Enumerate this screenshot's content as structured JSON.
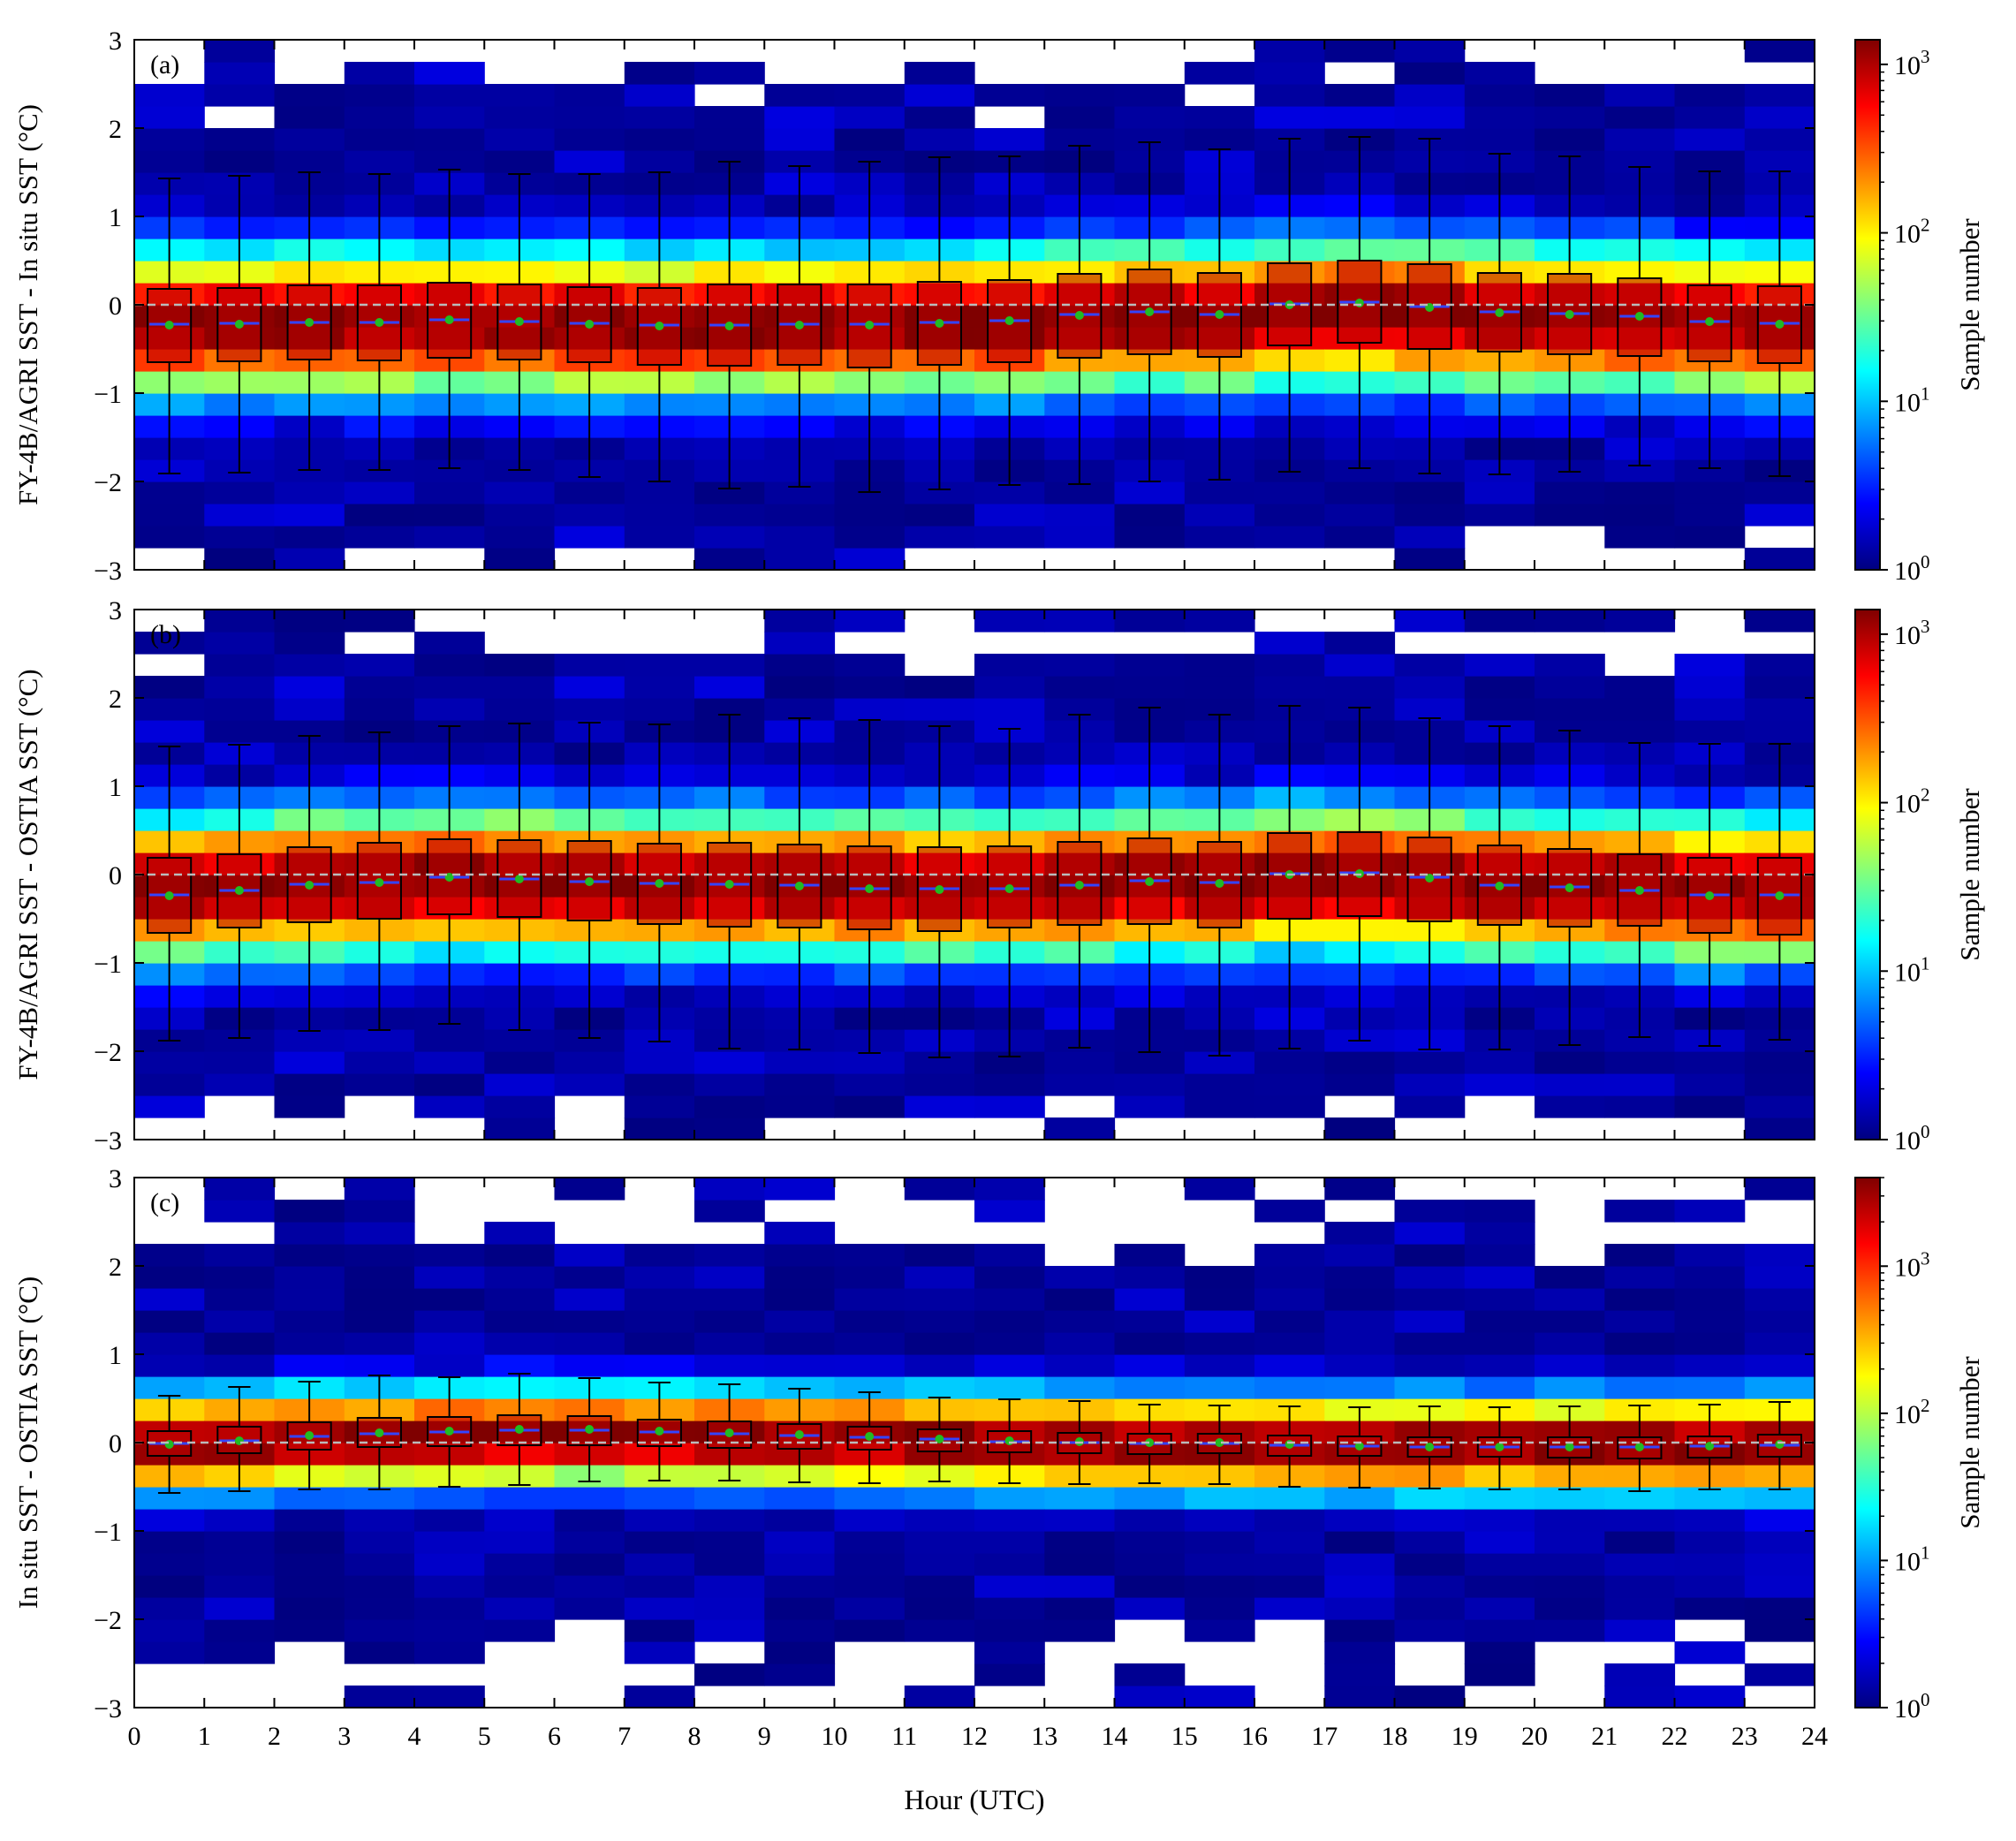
{
  "colors": {
    "box_fill": "#b80000",
    "median_line": "#3344ff",
    "mean_marker": "#22bb22",
    "zero_line": "#bbbbbb",
    "colormap": [
      "#00007f",
      "#0000ff",
      "#007fff",
      "#00ffff",
      "#7fff7f",
      "#ffff00",
      "#ff7f00",
      "#ff0000",
      "#7f0000"
    ]
  },
  "chart_data": [
    {
      "type": "heatmap",
      "panel_label": "(a)",
      "ylabel": "FY-4B/AGRI SST - In situ SST (°C)",
      "xlim": [
        0,
        24
      ],
      "ylim": [
        -3,
        3
      ],
      "x_ticks": [
        "0",
        "1",
        "2",
        "3",
        "4",
        "5",
        "6",
        "7",
        "8",
        "9",
        "10",
        "11",
        "12",
        "13",
        "14",
        "15",
        "16",
        "17",
        "18",
        "19",
        "20",
        "21",
        "22",
        "23",
        "24"
      ],
      "y_ticks": [
        "−3",
        "−2",
        "−1",
        "0",
        "1",
        "2",
        "3"
      ],
      "colorbar": {
        "label": "Sample number",
        "scale": "log",
        "range": [
          1,
          1400
        ],
        "tick_bases": [
          "10",
          "10",
          "10",
          "10"
        ],
        "tick_exps": [
          "0",
          "1",
          "2",
          "3"
        ]
      },
      "density_profile": {
        "center": -0.2,
        "spread": 0.95,
        "peak": 1400,
        "tail_cutoff": 2.6
      },
      "hours": [
        0.5,
        1.5,
        2.5,
        3.5,
        4.5,
        5.5,
        6.5,
        7.5,
        8.5,
        9.5,
        10.5,
        11.5,
        12.5,
        13.5,
        14.5,
        15.5,
        16.5,
        17.5,
        18.5,
        19.5,
        20.5,
        21.5,
        22.5,
        23.5
      ],
      "box": {
        "q1": [
          -0.65,
          -0.64,
          -0.62,
          -0.63,
          -0.6,
          -0.62,
          -0.65,
          -0.68,
          -0.69,
          -0.68,
          -0.71,
          -0.68,
          -0.65,
          -0.6,
          -0.56,
          -0.59,
          -0.46,
          -0.43,
          -0.5,
          -0.53,
          -0.56,
          -0.58,
          -0.64,
          -0.66
        ],
        "median": [
          -0.22,
          -0.21,
          -0.2,
          -0.2,
          -0.17,
          -0.19,
          -0.21,
          -0.23,
          -0.23,
          -0.22,
          -0.22,
          -0.2,
          -0.18,
          -0.11,
          -0.08,
          -0.11,
          0.01,
          0.03,
          -0.02,
          -0.08,
          -0.1,
          -0.13,
          -0.19,
          -0.21
        ],
        "q3": [
          0.18,
          0.19,
          0.22,
          0.22,
          0.25,
          0.23,
          0.2,
          0.19,
          0.23,
          0.23,
          0.23,
          0.26,
          0.28,
          0.35,
          0.4,
          0.36,
          0.47,
          0.5,
          0.46,
          0.36,
          0.35,
          0.3,
          0.22,
          0.21
        ],
        "whisker_low": [
          -1.91,
          -1.9,
          -1.87,
          -1.87,
          -1.85,
          -1.87,
          -1.95,
          -2.0,
          -2.08,
          -2.06,
          -2.12,
          -2.09,
          -2.04,
          -2.03,
          -2.0,
          -1.98,
          -1.89,
          -1.85,
          -1.91,
          -1.92,
          -1.89,
          -1.82,
          -1.85,
          -1.94
        ],
        "whisker_high": [
          1.43,
          1.46,
          1.5,
          1.48,
          1.53,
          1.48,
          1.48,
          1.5,
          1.62,
          1.57,
          1.62,
          1.67,
          1.68,
          1.8,
          1.84,
          1.76,
          1.88,
          1.9,
          1.88,
          1.71,
          1.68,
          1.56,
          1.51,
          1.51
        ],
        "mean": [
          -0.23,
          -0.22,
          -0.2,
          -0.2,
          -0.17,
          -0.19,
          -0.22,
          -0.24,
          -0.24,
          -0.23,
          -0.23,
          -0.21,
          -0.18,
          -0.12,
          -0.08,
          -0.11,
          0.0,
          0.02,
          -0.03,
          -0.09,
          -0.11,
          -0.13,
          -0.19,
          -0.22
        ]
      }
    },
    {
      "type": "heatmap",
      "panel_label": "(b)",
      "ylabel": "FY-4B/AGRI SST - OSTIA SST (°C)",
      "xlim": [
        0,
        24
      ],
      "ylim": [
        -3,
        3
      ],
      "x_ticks": [
        "0",
        "1",
        "2",
        "3",
        "4",
        "5",
        "6",
        "7",
        "8",
        "9",
        "10",
        "11",
        "12",
        "13",
        "14",
        "15",
        "16",
        "17",
        "18",
        "19",
        "20",
        "21",
        "22",
        "23",
        "24"
      ],
      "y_ticks": [
        "−3",
        "−2",
        "−1",
        "0",
        "1",
        "2",
        "3"
      ],
      "colorbar": {
        "label": "Sample number",
        "scale": "log",
        "range": [
          1,
          1400
        ],
        "tick_bases": [
          "10",
          "10",
          "10",
          "10"
        ],
        "tick_exps": [
          "0",
          "1",
          "2",
          "3"
        ]
      },
      "density_profile": {
        "center": -0.1,
        "spread": 0.95,
        "peak": 1400,
        "tail_cutoff": 2.6
      },
      "hours": [
        0.5,
        1.5,
        2.5,
        3.5,
        4.5,
        5.5,
        6.5,
        7.5,
        8.5,
        9.5,
        10.5,
        11.5,
        12.5,
        13.5,
        14.5,
        15.5,
        16.5,
        17.5,
        18.5,
        19.5,
        20.5,
        21.5,
        22.5,
        23.5
      ],
      "box": {
        "q1": [
          -0.66,
          -0.6,
          -0.54,
          -0.5,
          -0.45,
          -0.48,
          -0.52,
          -0.56,
          -0.59,
          -0.6,
          -0.62,
          -0.64,
          -0.6,
          -0.57,
          -0.56,
          -0.6,
          -0.5,
          -0.47,
          -0.53,
          -0.57,
          -0.59,
          -0.58,
          -0.66,
          -0.68
        ],
        "median": [
          -0.23,
          -0.18,
          -0.11,
          -0.09,
          -0.03,
          -0.05,
          -0.08,
          -0.1,
          -0.11,
          -0.12,
          -0.16,
          -0.16,
          -0.16,
          -0.12,
          -0.07,
          -0.09,
          0.01,
          0.02,
          -0.03,
          -0.12,
          -0.14,
          -0.18,
          -0.23,
          -0.23
        ],
        "q3": [
          0.19,
          0.23,
          0.31,
          0.36,
          0.4,
          0.39,
          0.38,
          0.35,
          0.36,
          0.34,
          0.32,
          0.31,
          0.32,
          0.37,
          0.41,
          0.37,
          0.47,
          0.48,
          0.42,
          0.33,
          0.29,
          0.23,
          0.19,
          0.19
        ],
        "whisker_low": [
          -1.88,
          -1.85,
          -1.77,
          -1.76,
          -1.69,
          -1.76,
          -1.85,
          -1.89,
          -1.97,
          -1.98,
          -2.02,
          -2.07,
          -2.06,
          -1.96,
          -2.01,
          -2.05,
          -1.97,
          -1.88,
          -1.98,
          -1.98,
          -1.93,
          -1.84,
          -1.94,
          -1.87
        ],
        "whisker_high": [
          1.45,
          1.47,
          1.57,
          1.61,
          1.68,
          1.71,
          1.72,
          1.7,
          1.81,
          1.77,
          1.75,
          1.68,
          1.65,
          1.81,
          1.89,
          1.81,
          1.91,
          1.89,
          1.77,
          1.68,
          1.63,
          1.49,
          1.48,
          1.48
        ],
        "mean": [
          -0.24,
          -0.18,
          -0.12,
          -0.09,
          -0.03,
          -0.05,
          -0.08,
          -0.1,
          -0.11,
          -0.13,
          -0.16,
          -0.17,
          -0.16,
          -0.12,
          -0.08,
          -0.1,
          0.0,
          0.01,
          -0.04,
          -0.13,
          -0.15,
          -0.18,
          -0.24,
          -0.24
        ]
      }
    },
    {
      "type": "heatmap",
      "panel_label": "(c)",
      "ylabel": "In situ SST - OSTIA SST (°C)",
      "xlim": [
        0,
        24
      ],
      "ylim": [
        -3,
        3
      ],
      "x_ticks": [
        "0",
        "1",
        "2",
        "3",
        "4",
        "5",
        "6",
        "7",
        "8",
        "9",
        "10",
        "11",
        "12",
        "13",
        "14",
        "15",
        "16",
        "17",
        "18",
        "19",
        "20",
        "21",
        "22",
        "23",
        "24"
      ],
      "y_ticks": [
        "−3",
        "−2",
        "−1",
        "0",
        "1",
        "2",
        "3"
      ],
      "xlabel": "Hour (UTC)",
      "colorbar": {
        "label": "Sample number",
        "scale": "log",
        "range": [
          1,
          4000
        ],
        "tick_bases": [
          "10",
          "10",
          "10",
          "10"
        ],
        "tick_exps": [
          "0",
          "1",
          "2",
          "3"
        ]
      },
      "density_profile": {
        "center": 0.0,
        "spread": 0.65,
        "peak": 4000,
        "tail_cutoff": 2.3
      },
      "hours": [
        0.5,
        1.5,
        2.5,
        3.5,
        4.5,
        5.5,
        6.5,
        7.5,
        8.5,
        9.5,
        10.5,
        11.5,
        12.5,
        13.5,
        14.5,
        15.5,
        16.5,
        17.5,
        18.5,
        19.5,
        20.5,
        21.5,
        22.5,
        23.5
      ],
      "box": {
        "q1": [
          -0.15,
          -0.12,
          -0.08,
          -0.05,
          -0.04,
          -0.03,
          -0.03,
          -0.04,
          -0.06,
          -0.07,
          -0.08,
          -0.1,
          -0.11,
          -0.12,
          -0.13,
          -0.12,
          -0.15,
          -0.15,
          -0.16,
          -0.16,
          -0.17,
          -0.18,
          -0.17,
          -0.16
        ],
        "median": [
          -0.01,
          0.02,
          0.07,
          0.1,
          0.12,
          0.14,
          0.14,
          0.12,
          0.1,
          0.08,
          0.06,
          0.04,
          0.01,
          0.0,
          -0.01,
          -0.01,
          -0.03,
          -0.04,
          -0.05,
          -0.05,
          -0.05,
          -0.05,
          -0.04,
          -0.03
        ],
        "q3": [
          0.13,
          0.18,
          0.23,
          0.28,
          0.29,
          0.31,
          0.3,
          0.26,
          0.24,
          0.21,
          0.18,
          0.15,
          0.13,
          0.11,
          0.1,
          0.1,
          0.08,
          0.07,
          0.06,
          0.06,
          0.06,
          0.06,
          0.07,
          0.09
        ],
        "whisker_low": [
          -0.57,
          -0.55,
          -0.53,
          -0.53,
          -0.5,
          -0.48,
          -0.44,
          -0.43,
          -0.43,
          -0.45,
          -0.46,
          -0.44,
          -0.46,
          -0.47,
          -0.46,
          -0.47,
          -0.5,
          -0.51,
          -0.52,
          -0.53,
          -0.53,
          -0.55,
          -0.53,
          -0.53
        ],
        "whisker_high": [
          0.53,
          0.63,
          0.69,
          0.76,
          0.74,
          0.78,
          0.73,
          0.68,
          0.66,
          0.61,
          0.57,
          0.51,
          0.49,
          0.47,
          0.43,
          0.42,
          0.41,
          0.4,
          0.41,
          0.4,
          0.41,
          0.42,
          0.43,
          0.46
        ],
        "mean": [
          -0.02,
          0.02,
          0.08,
          0.11,
          0.13,
          0.15,
          0.15,
          0.13,
          0.11,
          0.09,
          0.07,
          0.04,
          0.02,
          0.01,
          0.0,
          0.0,
          -0.02,
          -0.04,
          -0.05,
          -0.05,
          -0.05,
          -0.05,
          -0.04,
          -0.02
        ]
      }
    }
  ]
}
